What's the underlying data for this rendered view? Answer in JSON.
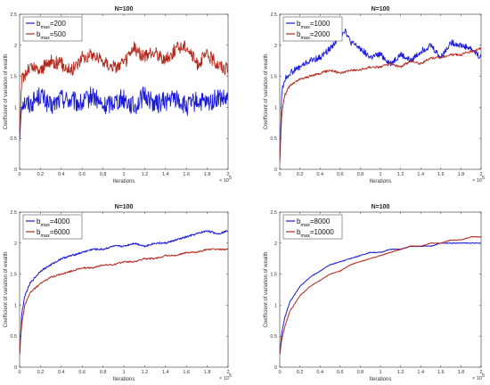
{
  "chart_data": [
    {
      "type": "line",
      "title": "N=100",
      "xlabel": "Iterations",
      "ylabel": "Coefficient of variation of wealth",
      "xlim": [
        0,
        2
      ],
      "ylim": [
        0,
        2.5
      ],
      "x_multiplier_label": "× 10",
      "x_multiplier_exp": "5",
      "xticks": [
        "0",
        "0.2",
        "0.4",
        "0.6",
        "0.8",
        "1",
        "1.2",
        "1.4",
        "1.6",
        "1.8",
        "2"
      ],
      "yticks": [
        "0",
        "0.5",
        "1",
        "1.5",
        "2",
        "2.5"
      ],
      "legend_position": "top-left",
      "series": [
        {
          "name_main": "b",
          "name_sub": "max",
          "name_suffix": "=200",
          "color": "#1a1ad6",
          "x": [
            0,
            0.02,
            0.1,
            0.2,
            0.3,
            0.4,
            0.5,
            0.6,
            0.7,
            0.8,
            0.9,
            1.0,
            1.1,
            1.2,
            1.3,
            1.4,
            1.5,
            1.6,
            1.7,
            1.8,
            1.9,
            2.0
          ],
          "y": [
            0.45,
            1.1,
            1.05,
            1.2,
            1.0,
            1.15,
            1.1,
            1.05,
            1.2,
            1.0,
            1.1,
            1.15,
            1.0,
            1.2,
            1.05,
            1.1,
            1.15,
            1.0,
            1.1,
            1.05,
            1.15,
            1.1
          ]
        },
        {
          "name_main": "b",
          "name_sub": "max",
          "name_suffix": "=500",
          "color": "#b22a1e",
          "x": [
            0,
            0.02,
            0.1,
            0.2,
            0.3,
            0.4,
            0.5,
            0.6,
            0.7,
            0.8,
            0.9,
            1.0,
            1.1,
            1.2,
            1.3,
            1.4,
            1.5,
            1.6,
            1.7,
            1.8,
            1.9,
            2.0
          ],
          "y": [
            0.55,
            1.45,
            1.65,
            1.6,
            1.75,
            1.7,
            1.6,
            1.8,
            1.85,
            1.75,
            1.65,
            1.7,
            1.95,
            1.8,
            1.9,
            1.75,
            1.95,
            2.0,
            1.7,
            1.85,
            1.7,
            1.6
          ]
        }
      ]
    },
    {
      "type": "line",
      "title": "N=100",
      "xlabel": "Iterations",
      "ylabel": "Coefficient of variation of wealth",
      "xlim": [
        0,
        2
      ],
      "ylim": [
        0,
        2.5
      ],
      "x_multiplier_label": "× 10",
      "x_multiplier_exp": "5",
      "xticks": [
        "0",
        "0.2",
        "0.4",
        "0.6",
        "0.8",
        "1",
        "1.2",
        "1.4",
        "1.6",
        "1.8",
        "2"
      ],
      "yticks": [
        "0",
        "0.5",
        "1",
        "1.5",
        "2",
        "2.5"
      ],
      "legend_position": "top-left",
      "series": [
        {
          "name_main": "b",
          "name_sub": "max",
          "name_suffix": "=1000",
          "color": "#1a1ad6",
          "x": [
            0,
            0.02,
            0.05,
            0.1,
            0.2,
            0.3,
            0.4,
            0.5,
            0.6,
            0.65,
            0.7,
            0.8,
            0.9,
            1.0,
            1.1,
            1.2,
            1.3,
            1.4,
            1.5,
            1.6,
            1.7,
            1.8,
            1.9,
            2.0
          ],
          "y": [
            0.1,
            1.25,
            1.45,
            1.55,
            1.65,
            1.75,
            1.8,
            1.95,
            2.15,
            2.25,
            2.05,
            1.95,
            1.8,
            1.85,
            1.7,
            1.85,
            1.75,
            1.9,
            2.0,
            1.8,
            2.05,
            2.0,
            1.95,
            1.8
          ]
        },
        {
          "name_main": "b",
          "name_sub": "max",
          "name_suffix": "=2000",
          "color": "#b22a1e",
          "x": [
            0,
            0.02,
            0.05,
            0.1,
            0.2,
            0.3,
            0.4,
            0.5,
            0.6,
            0.7,
            0.8,
            0.9,
            1.0,
            1.1,
            1.2,
            1.3,
            1.4,
            1.5,
            1.6,
            1.7,
            1.8,
            1.9,
            2.0
          ],
          "y": [
            0.1,
            0.9,
            1.2,
            1.35,
            1.45,
            1.5,
            1.55,
            1.6,
            1.55,
            1.6,
            1.6,
            1.65,
            1.65,
            1.7,
            1.65,
            1.75,
            1.7,
            1.8,
            1.8,
            1.85,
            1.85,
            1.9,
            1.95
          ]
        }
      ]
    },
    {
      "type": "line",
      "title": "N=100",
      "xlabel": "Iterations",
      "ylabel": "Coefficient of variation of wealth",
      "xlim": [
        0,
        2
      ],
      "ylim": [
        0,
        2.5
      ],
      "x_multiplier_label": "× 10",
      "x_multiplier_exp": "5",
      "xticks": [
        "0",
        "0.2",
        "0.4",
        "0.6",
        "0.8",
        "1",
        "1.2",
        "1.4",
        "1.6",
        "1.8",
        "2"
      ],
      "yticks": [
        "0",
        "0.5",
        "1",
        "1.5",
        "2",
        "2.5"
      ],
      "legend_position": "top-left",
      "series": [
        {
          "name_main": "b",
          "name_sub": "max",
          "name_suffix": "=4000",
          "color": "#1a1ad6",
          "x": [
            0,
            0.02,
            0.05,
            0.1,
            0.2,
            0.3,
            0.4,
            0.5,
            0.6,
            0.7,
            0.8,
            0.9,
            1.0,
            1.1,
            1.2,
            1.3,
            1.4,
            1.5,
            1.6,
            1.7,
            1.8,
            1.9,
            2.0
          ],
          "y": [
            0.2,
            0.85,
            1.15,
            1.35,
            1.55,
            1.65,
            1.75,
            1.8,
            1.85,
            1.9,
            1.9,
            1.95,
            1.95,
            2.0,
            1.95,
            2.0,
            2.0,
            2.05,
            2.1,
            2.15,
            2.2,
            2.15,
            2.2
          ]
        },
        {
          "name_main": "b",
          "name_sub": "max",
          "name_suffix": "=6000",
          "color": "#b22a1e",
          "x": [
            0,
            0.02,
            0.05,
            0.1,
            0.2,
            0.3,
            0.4,
            0.5,
            0.6,
            0.7,
            0.8,
            0.9,
            1.0,
            1.1,
            1.2,
            1.3,
            1.4,
            1.5,
            1.6,
            1.7,
            1.8,
            1.9,
            2.0
          ],
          "y": [
            0.2,
            0.7,
            1.0,
            1.2,
            1.35,
            1.45,
            1.5,
            1.55,
            1.6,
            1.6,
            1.65,
            1.65,
            1.7,
            1.7,
            1.75,
            1.75,
            1.8,
            1.8,
            1.85,
            1.85,
            1.9,
            1.9,
            1.9
          ]
        }
      ]
    },
    {
      "type": "line",
      "title": "N=100",
      "xlabel": "Iterations",
      "ylabel": "Coefficient of variation of wealth",
      "xlim": [
        0,
        2
      ],
      "ylim": [
        0,
        2.5
      ],
      "x_multiplier_label": "× 10",
      "x_multiplier_exp": "5",
      "xticks": [
        "0",
        "0.2",
        "0.4",
        "0.6",
        "0.8",
        "1",
        "1.2",
        "1.4",
        "1.6",
        "1.8",
        "2"
      ],
      "yticks": [
        "0",
        "0.5",
        "1",
        "1.5",
        "2",
        "2.5"
      ],
      "legend_position": "top-left",
      "series": [
        {
          "name_main": "b",
          "name_sub": "max",
          "name_suffix": "=8000",
          "color": "#1a1ad6",
          "x": [
            0,
            0.02,
            0.05,
            0.1,
            0.2,
            0.3,
            0.4,
            0.5,
            0.6,
            0.7,
            0.8,
            0.9,
            1.0,
            1.1,
            1.2,
            1.3,
            1.4,
            1.5,
            1.6,
            1.7,
            1.8,
            1.9,
            2.0
          ],
          "y": [
            0.2,
            0.55,
            0.8,
            1.05,
            1.3,
            1.45,
            1.55,
            1.65,
            1.7,
            1.75,
            1.8,
            1.85,
            1.85,
            1.9,
            1.9,
            1.95,
            1.95,
            1.95,
            2.0,
            2.0,
            2.0,
            2.0,
            2.0
          ]
        },
        {
          "name_main": "b",
          "name_sub": "max",
          "name_suffix": "=10000",
          "color": "#b22a1e",
          "x": [
            0,
            0.02,
            0.05,
            0.1,
            0.2,
            0.3,
            0.4,
            0.5,
            0.6,
            0.7,
            0.8,
            0.9,
            1.0,
            1.1,
            1.2,
            1.3,
            1.4,
            1.5,
            1.6,
            1.7,
            1.8,
            1.9,
            2.0
          ],
          "y": [
            0.2,
            0.45,
            0.65,
            0.9,
            1.15,
            1.3,
            1.4,
            1.5,
            1.55,
            1.65,
            1.7,
            1.75,
            1.8,
            1.85,
            1.9,
            1.95,
            1.95,
            2.0,
            2.0,
            2.05,
            2.05,
            2.1,
            2.1
          ]
        }
      ]
    }
  ]
}
